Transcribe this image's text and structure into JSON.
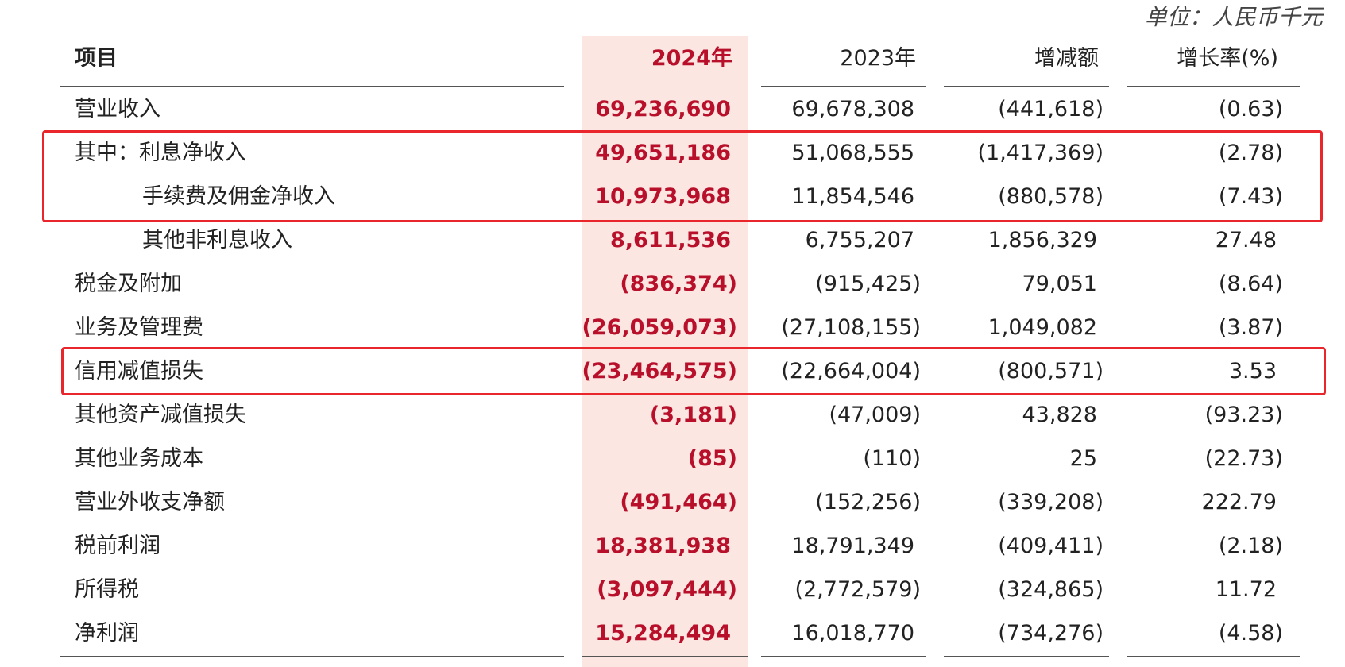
{
  "unit_label": "单位：人民币千元",
  "headers": {
    "item": "项目",
    "y2024": "2024年",
    "y2023": "2023年",
    "diff": "增减额",
    "rate": "增长率(%)"
  },
  "rows": [
    {
      "label": "营业收入",
      "y2024": "69,236,690",
      "y2023": "69,678,308",
      "diff": "(441,618)",
      "rate": "(0.63)"
    },
    {
      "label": "其中：利息净收入",
      "y2024": "49,651,186",
      "y2023": "51,068,555",
      "diff": "(1,417,369)",
      "rate": "(2.78)"
    },
    {
      "label": "手续费及佣金净收入",
      "y2024": "10,973,968",
      "y2023": "11,854,546",
      "diff": "(880,578)",
      "rate": "(7.43)"
    },
    {
      "label": "其他非利息收入",
      "y2024": "8,611,536",
      "y2023": "6,755,207",
      "diff": "1,856,329",
      "rate": "27.48"
    },
    {
      "label": "税金及附加",
      "y2024": "(836,374)",
      "y2023": "(915,425)",
      "diff": "79,051",
      "rate": "(8.64)"
    },
    {
      "label": "业务及管理费",
      "y2024": "(26,059,073)",
      "y2023": "(27,108,155)",
      "diff": "1,049,082",
      "rate": "(3.87)"
    },
    {
      "label": "信用减值损失",
      "y2024": "(23,464,575)",
      "y2023": "(22,664,004)",
      "diff": "(800,571)",
      "rate": "3.53"
    },
    {
      "label": "其他资产减值损失",
      "y2024": "(3,181)",
      "y2023": "(47,009)",
      "diff": "43,828",
      "rate": "(93.23)"
    },
    {
      "label": "其他业务成本",
      "y2024": "(85)",
      "y2023": "(110)",
      "diff": "25",
      "rate": "(22.73)"
    },
    {
      "label": "营业外收支净额",
      "y2024": "(491,464)",
      "y2023": "(152,256)",
      "diff": "(339,208)",
      "rate": "222.79"
    },
    {
      "label": "税前利润",
      "y2024": "18,381,938",
      "y2023": "18,791,349",
      "diff": "(409,411)",
      "rate": "(2.18)"
    },
    {
      "label": "所得税",
      "y2024": "(3,097,444)",
      "y2023": "(2,772,579)",
      "diff": "(324,865)",
      "rate": "11.72"
    },
    {
      "label": "净利润",
      "y2024": "15,284,494",
      "y2023": "16,018,770",
      "diff": "(734,276)",
      "rate": "(4.58)"
    }
  ],
  "colors": {
    "highlight_column": "#fce6e2",
    "accent_red": "#b8102a",
    "box_red": "#e8262b"
  }
}
